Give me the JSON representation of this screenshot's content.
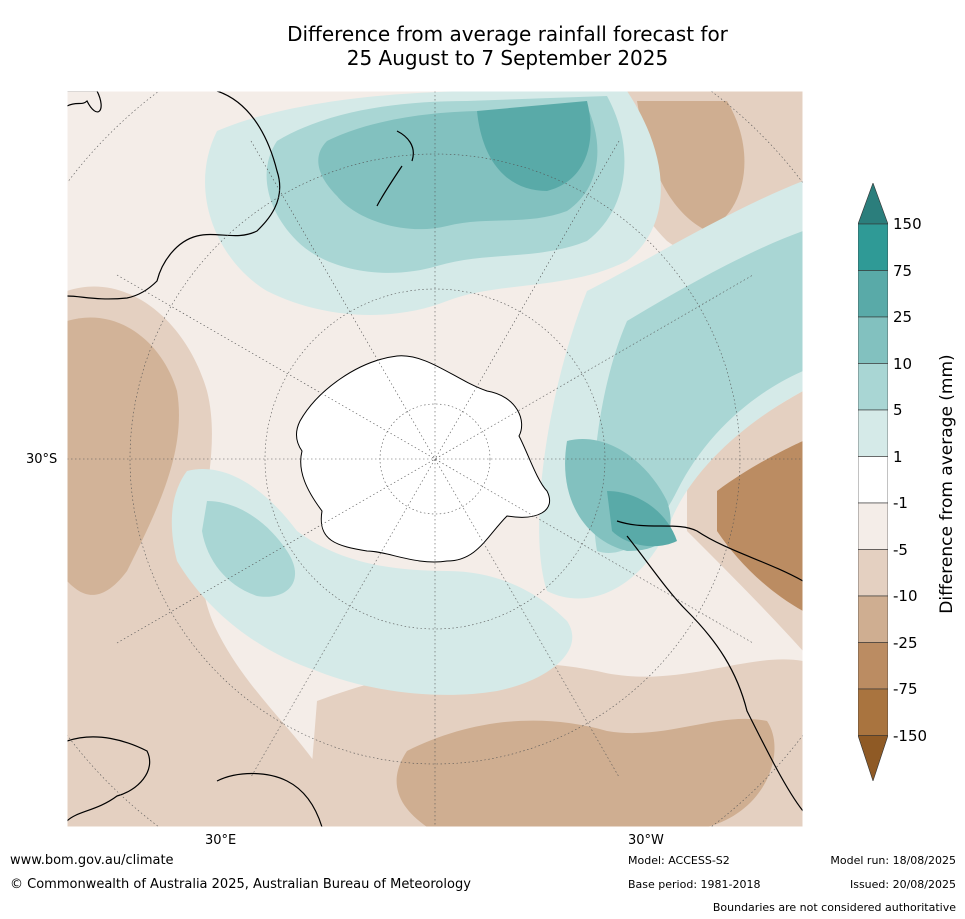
{
  "title": {
    "line1": "Difference from average rainfall forecast for",
    "line2": "25 August to 7 September 2025"
  },
  "map": {
    "latitude_label": "30°S",
    "longitude_labels": {
      "left": "30°E",
      "right": "30°W"
    }
  },
  "legend": {
    "title": "Difference from average (mm)",
    "ticks": [
      "150",
      "75",
      "25",
      "10",
      "5",
      "1",
      "-1",
      "-5",
      "-10",
      "-25",
      "-75",
      "-150"
    ],
    "colors": {
      "gt150": "#2b7e7c",
      "75_150": "#2f9a96",
      "25_75": "#59aaa8",
      "10_25": "#82c1bf",
      "5_10": "#a9d6d4",
      "1_5": "#d5eae8",
      "m1_1": "#ffffff",
      "m5_m1": "#f4ede8",
      "m10_m5": "#e4d0c1",
      "m25_m10": "#cfae91",
      "m75_m25": "#bb8c62",
      "m150_m75": "#a9743f",
      "lt_m150": "#8f5a25"
    }
  },
  "footer": {
    "website": "www.bom.gov.au/climate",
    "copyright": "© Commonwealth of Australia 2025, Australian Bureau of Meteorology",
    "model": "Model: ACCESS-S2",
    "base_period": "Base period: 1981-2018",
    "model_run": "Model run: 18/08/2025",
    "issued": "Issued: 20/08/2025",
    "disclaimer": "Boundaries are not considered authoritative"
  }
}
